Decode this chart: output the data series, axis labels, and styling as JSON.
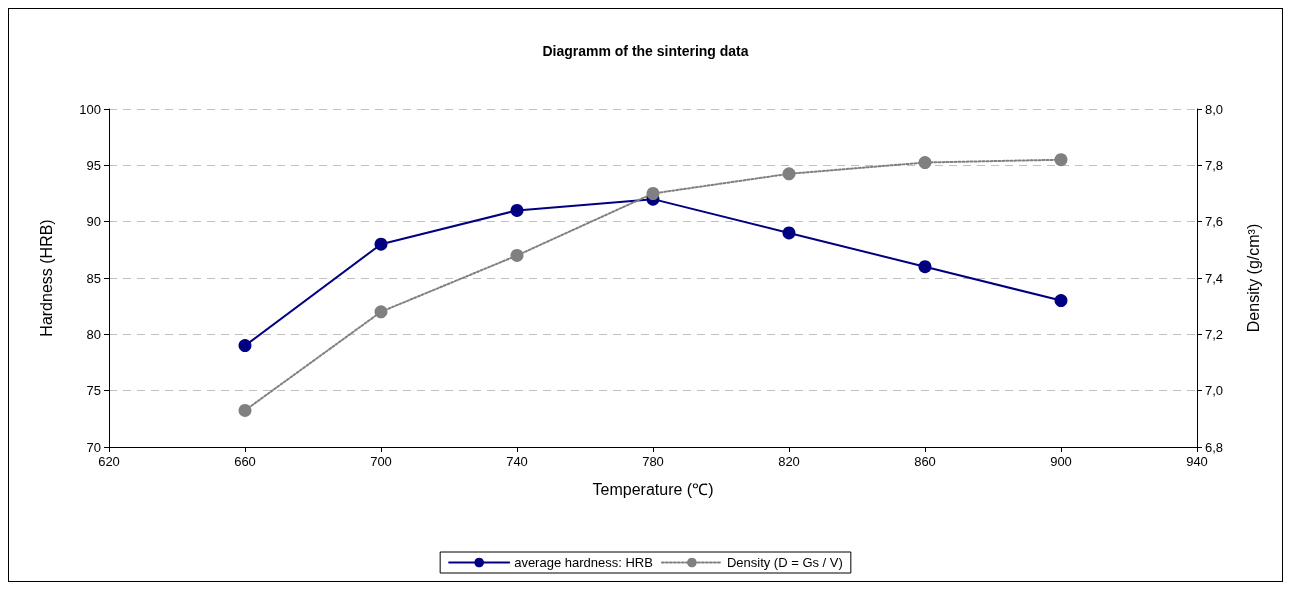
{
  "chart_data": {
    "type": "line",
    "title": "Diagramm of the sintering data",
    "xlabel": "Temperature (℃)",
    "ylabel": "Hardness (HRB)",
    "y2label": "Density (g/cm³)",
    "x": [
      660,
      700,
      740,
      780,
      820,
      860,
      900
    ],
    "xlim": [
      620,
      940
    ],
    "xticks": [
      620,
      660,
      700,
      740,
      780,
      820,
      860,
      900,
      940
    ],
    "ylim": [
      70,
      100
    ],
    "yticks": [
      70,
      75,
      80,
      85,
      90,
      95,
      100
    ],
    "y2lim": [
      6.8,
      8.0
    ],
    "y2ticks": [
      {
        "value": 6.8,
        "label": "6,8"
      },
      {
        "value": 7.0,
        "label": "7,0"
      },
      {
        "value": 7.2,
        "label": "7,2"
      },
      {
        "value": 7.4,
        "label": "7,4"
      },
      {
        "value": 7.6,
        "label": "7,6"
      },
      {
        "value": 7.8,
        "label": "7,8"
      },
      {
        "value": 8.0,
        "label": "8,0"
      }
    ],
    "series": [
      {
        "name": "average hardness: HRB",
        "color": "#000080",
        "line_style": "solid",
        "values": [
          79,
          88,
          91,
          92,
          89,
          86,
          83
        ]
      },
      {
        "name": "Density (D = Gs / V)",
        "color": "#808080",
        "line_style": "dotted",
        "axis": "y2",
        "values": [
          6.93,
          7.28,
          7.48,
          7.7,
          7.77,
          7.81,
          7.82
        ]
      }
    ],
    "grid": "y",
    "legend": "bottom",
    "marker": "circle"
  }
}
